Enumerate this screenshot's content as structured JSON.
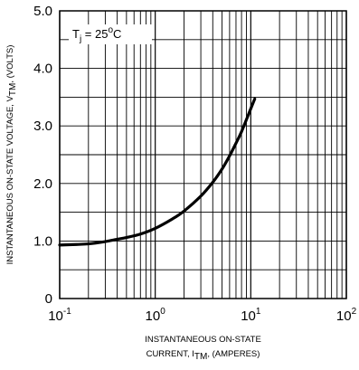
{
  "chart_data": {
    "type": "line",
    "x_scale": "log",
    "x_ticks": [
      0.1,
      1,
      10,
      100
    ],
    "x_tick_labels": [
      {
        "base": "10",
        "exp": "-1"
      },
      {
        "base": "10",
        "exp": "0"
      },
      {
        "base": "10",
        "exp": "1"
      },
      {
        "base": "10",
        "exp": "2"
      }
    ],
    "xlim": [
      0.1,
      100
    ],
    "y_scale": "linear",
    "y_ticks": [
      0,
      1.0,
      2.0,
      3.0,
      4.0,
      5.0
    ],
    "y_tick_labels": [
      "0",
      "1.0",
      "2.0",
      "3.0",
      "4.0",
      "5.0"
    ],
    "ylim": [
      0,
      5.0
    ],
    "grid": true,
    "ylabel": {
      "main": "INSTANTANEOUS ON-STATE VOLTAGE, V",
      "sub": "TM",
      "tail": ", (VOLTS)"
    },
    "xlabel_line1": "INSTANTANEOUS ON-STATE",
    "xlabel_line2": {
      "main": "CURRENT, I",
      "sub": "TM",
      "tail": ", (AMPERES)"
    },
    "annotation": {
      "prefix": "T",
      "sub": "j",
      "mid": " = 25",
      "sup": "o",
      "tail": "C"
    },
    "line_color": "#000000",
    "series": [
      {
        "x": [
          0.1,
          0.15,
          0.2,
          0.3,
          0.4,
          0.5,
          0.7,
          1.0,
          1.5,
          2.0,
          3.0,
          4.0,
          5.0,
          6.0,
          7.0,
          8.0,
          10.0,
          11.0
        ],
        "y": [
          0.93,
          0.94,
          0.95,
          0.99,
          1.03,
          1.06,
          1.12,
          1.22,
          1.38,
          1.52,
          1.78,
          2.02,
          2.25,
          2.48,
          2.7,
          2.9,
          3.3,
          3.47
        ]
      }
    ]
  }
}
